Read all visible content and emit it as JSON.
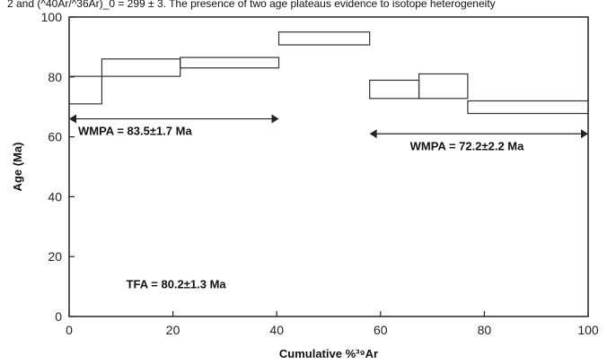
{
  "header_fragment": "2 and (^40Ar/^36Ar)_0 = 299 ± 3. The presence of two age plateaus evidence to isotope heterogeneity",
  "chart_data": {
    "type": "step",
    "title": "",
    "xlabel": "Cumulative %³⁹Ar",
    "ylabel": "Age (Ma)",
    "xlim": [
      0,
      100
    ],
    "ylim": [
      0,
      100
    ],
    "xticks": [
      0,
      20,
      40,
      60,
      80,
      100
    ],
    "yticks": [
      0,
      20,
      40,
      60,
      80,
      100
    ],
    "grid": false,
    "steps": [
      {
        "x": [
          0,
          6.3
        ],
        "age_low": 71.0,
        "age_high": 80.2
      },
      {
        "x": [
          6.3,
          21.4
        ],
        "age_low": 80.2,
        "age_high": 86.0
      },
      {
        "x": [
          21.4,
          40.4
        ],
        "age_low": 83.0,
        "age_high": 86.5
      },
      {
        "x": [
          40.4,
          57.9
        ],
        "age_low": 90.7,
        "age_high": 95.0
      },
      {
        "x": [
          57.9,
          67.4
        ],
        "age_low": 72.8,
        "age_high": 78.9
      },
      {
        "x": [
          67.4,
          76.8
        ],
        "age_low": 72.8,
        "age_high": 81.0
      },
      {
        "x": [
          76.8,
          100
        ],
        "age_low": 67.8,
        "age_high": 72.0
      }
    ],
    "plateaus": [
      {
        "label": "WMPA = 83.5±1.7 Ma",
        "x_start": 0,
        "x_end": 40.4,
        "y": 66.0
      },
      {
        "label": "WMPA = 72.2±2.2 Ma",
        "x_start": 57.9,
        "x_end": 100,
        "y": 61.0
      }
    ],
    "annotations": [
      {
        "text": "TFA = 80.2±1.3 Ma",
        "x": 11,
        "y": 9.5
      }
    ]
  }
}
